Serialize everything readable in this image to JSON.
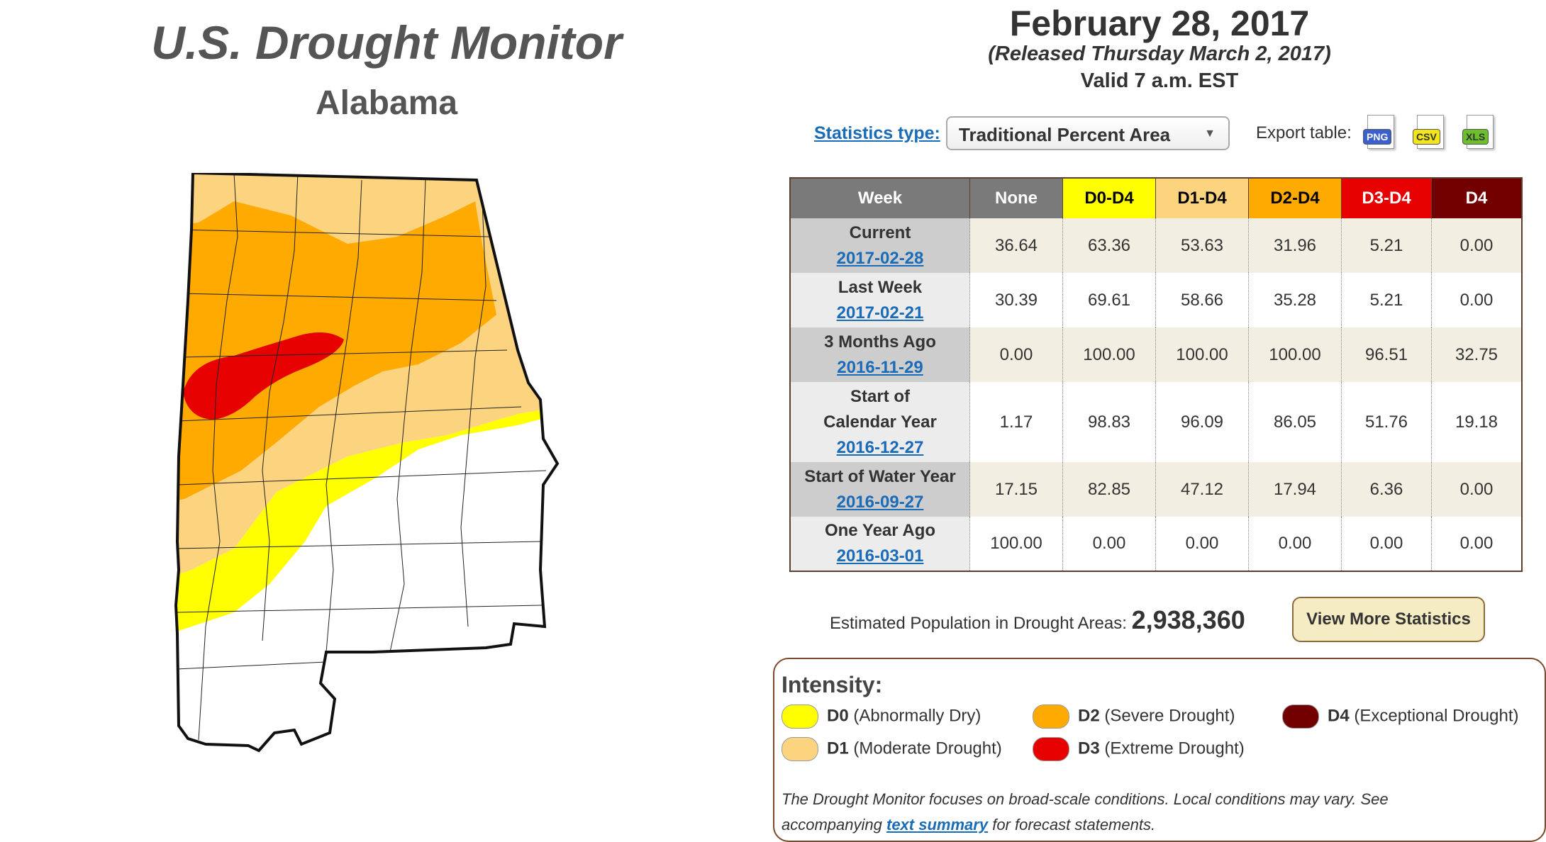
{
  "header": {
    "title": "U.S. Drought Monitor",
    "state": "Alabama",
    "date": "February 28, 2017",
    "released": "(Released Thursday March 2, 2017)",
    "valid": "Valid 7 a.m. EST"
  },
  "controls": {
    "stats_label": "Statistics type:",
    "stats_value": "Traditional Percent Area",
    "export_label": "Export table:",
    "export_png": "PNG",
    "export_csv": "CSV",
    "export_xls": "XLS"
  },
  "table": {
    "headers": [
      "Week",
      "None",
      "D0-D4",
      "D1-D4",
      "D2-D4",
      "D3-D4",
      "D4"
    ],
    "header_colors": [
      "#7a7a7a",
      "#7a7a7a",
      "#ffff00",
      "#fcd37f",
      "#ffaa00",
      "#e60000",
      "#730000"
    ],
    "rows": [
      {
        "label": "Current",
        "date": "2017-02-28",
        "values": [
          "36.64",
          "63.36",
          "53.63",
          "31.96",
          "5.21",
          "0.00"
        ]
      },
      {
        "label": "Last Week",
        "date": "2017-02-21",
        "values": [
          "30.39",
          "69.61",
          "58.66",
          "35.28",
          "5.21",
          "0.00"
        ]
      },
      {
        "label": "3 Months Ago",
        "date": "2016-11-29",
        "values": [
          "0.00",
          "100.00",
          "100.00",
          "100.00",
          "96.51",
          "32.75"
        ]
      },
      {
        "label": "Start of Calendar Year",
        "date": "2016-12-27",
        "values": [
          "1.17",
          "98.83",
          "96.09",
          "86.05",
          "51.76",
          "19.18"
        ]
      },
      {
        "label": "Start of Water Year",
        "date": "2016-09-27",
        "values": [
          "17.15",
          "82.85",
          "47.12",
          "17.94",
          "6.36",
          "0.00"
        ]
      },
      {
        "label": "One Year Ago",
        "date": "2016-03-01",
        "values": [
          "100.00",
          "0.00",
          "0.00",
          "0.00",
          "0.00",
          "0.00"
        ]
      }
    ]
  },
  "population": {
    "label": "Estimated Population in Drought Areas:",
    "value": "2,938,360"
  },
  "more_button": "View More Statistics",
  "legend": {
    "title": "Intensity:",
    "items": [
      {
        "code": "D0",
        "desc": "(Abnormally Dry)",
        "color": "#ffff00"
      },
      {
        "code": "D1",
        "desc": "(Moderate Drought)",
        "color": "#fcd37f"
      },
      {
        "code": "D2",
        "desc": "(Severe Drought)",
        "color": "#ffaa00"
      },
      {
        "code": "D3",
        "desc": "(Extreme Drought)",
        "color": "#e60000"
      },
      {
        "code": "D4",
        "desc": "(Exceptional Drought)",
        "color": "#730000"
      }
    ],
    "note_before": "The Drought Monitor focuses on broad-scale conditions. Local conditions may vary. See accompanying",
    "note_link": "text summary",
    "note_after": "for forecast statements."
  }
}
